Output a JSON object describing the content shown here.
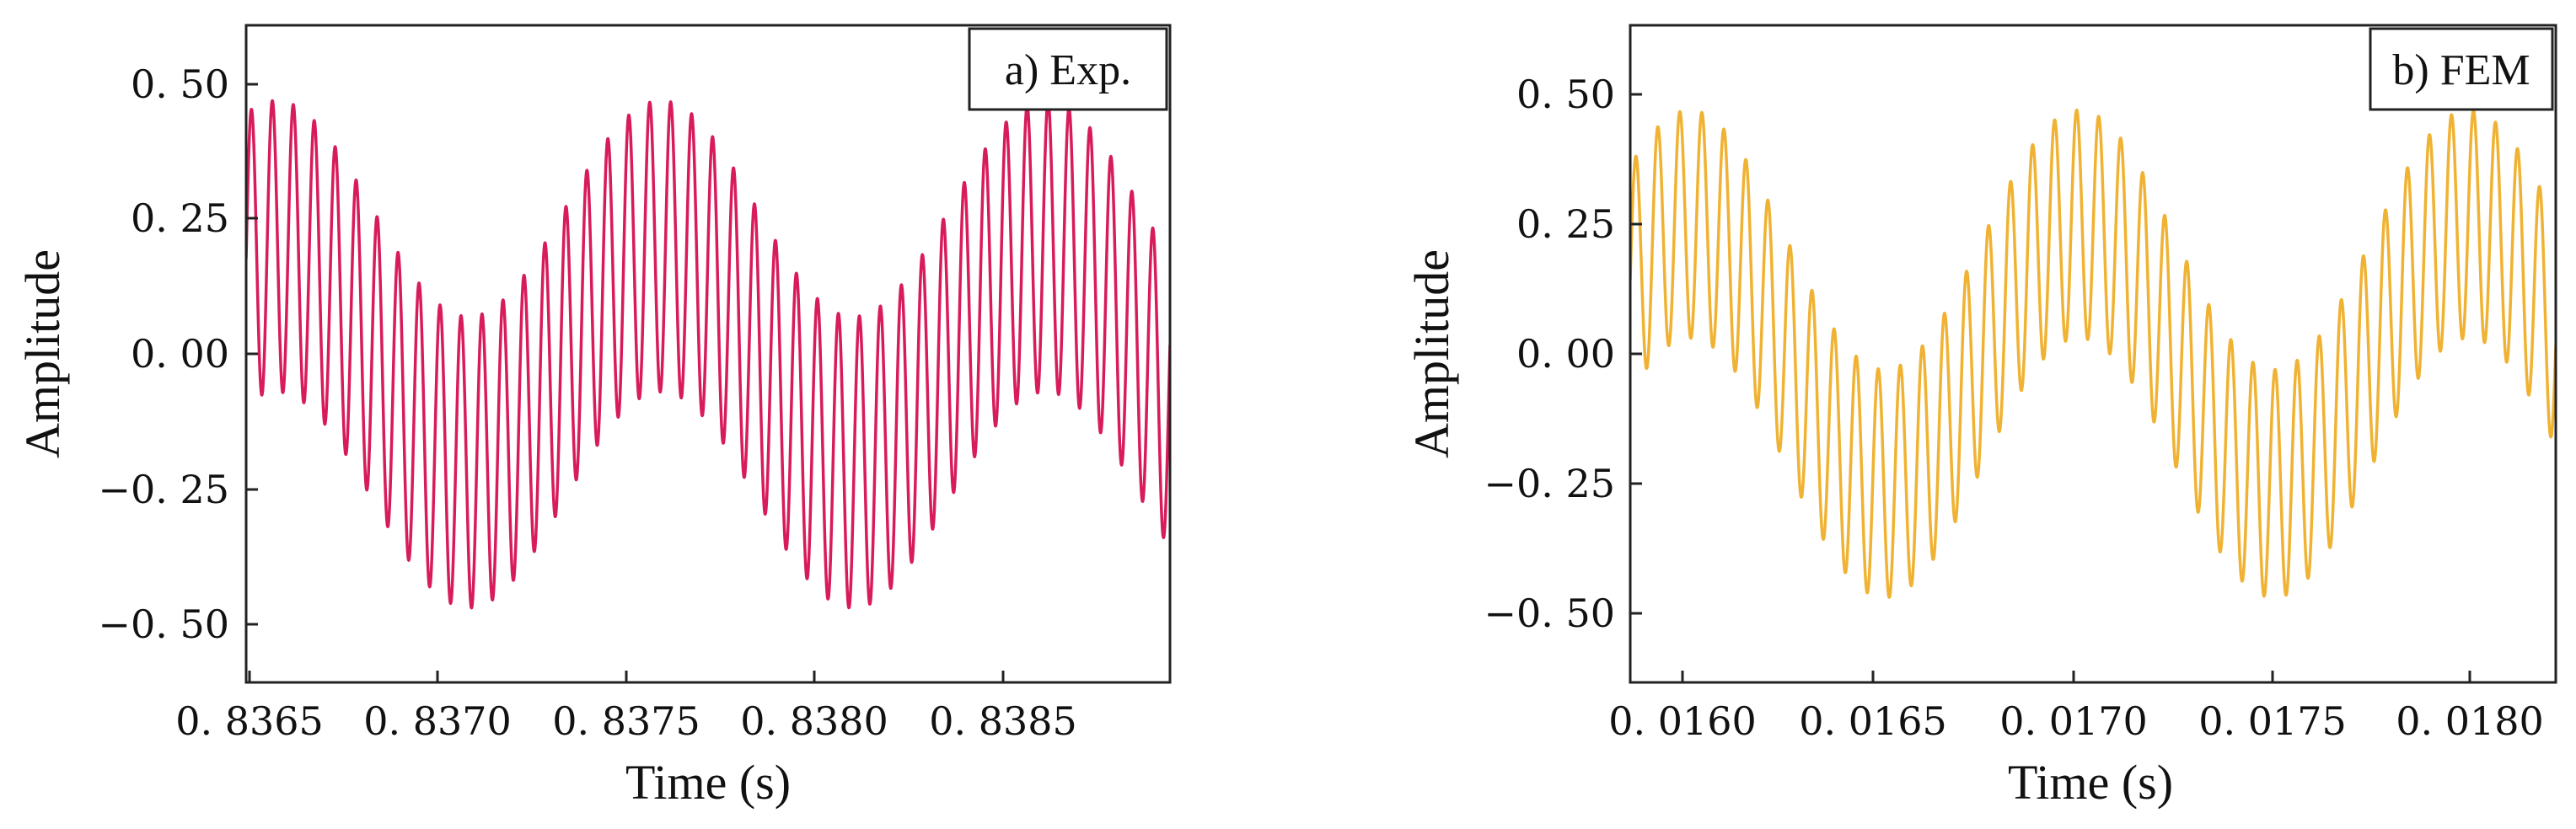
{
  "chart_data": [
    {
      "type": "line",
      "panel_label": "a) Exp.",
      "color": "#d81b5a",
      "xlabel": "Time (s)",
      "ylabel": "Amplitude",
      "xlim": [
        0.83645,
        0.8389
      ],
      "ylim": [
        -0.62,
        0.62
      ],
      "xticks": [
        0.8365,
        0.837,
        0.8375,
        0.838,
        0.8385
      ],
      "xtick_labels": [
        "0. 8365",
        "0. 8370",
        "0. 8375",
        "0. 8380",
        "0. 8385"
      ],
      "yticks": [
        0.5,
        0.25,
        0.0,
        -0.25,
        -0.5
      ],
      "ytick_labels": [
        "0. 50",
        "0. 25",
        "0. 00",
        "−0. 25",
        "−0. 50"
      ],
      "signal": {
        "description": "sum of two sinusoids",
        "low": {
          "amplitude": 0.2,
          "period": 0.00102,
          "peak_at": 0.83755
        },
        "high": {
          "amplitude": 0.27,
          "period": 5.56e-05,
          "phase": 0.0
        }
      },
      "grid": false,
      "legend": "top-right"
    },
    {
      "type": "line",
      "panel_label": "b) FEM",
      "color": "#f0b232",
      "xlabel": "Time (s)",
      "ylabel": "Amplitude",
      "xlim": [
        0.01587,
        0.0182
      ],
      "ylim": [
        -0.62,
        0.62
      ],
      "xticks": [
        0.016,
        0.0165,
        0.017,
        0.0175,
        0.018
      ],
      "xtick_labels": [
        "0. 0160",
        "0. 0165",
        "0. 0170",
        "0. 0175",
        "0. 0180"
      ],
      "yticks": [
        0.5,
        0.25,
        0.0,
        -0.25,
        -0.5
      ],
      "ytick_labels": [
        "0. 50",
        "0. 25",
        "0. 00",
        "−0. 25",
        "−0. 50"
      ],
      "signal": {
        "description": "sum of two sinusoids",
        "low": {
          "amplitude": 0.25,
          "period": 0.00098,
          "peak_at": 0.017
        },
        "high": {
          "amplitude": 0.22,
          "period": 5.55e-05,
          "phase": 0.0
        }
      },
      "grid": false,
      "legend": "top-right"
    }
  ]
}
